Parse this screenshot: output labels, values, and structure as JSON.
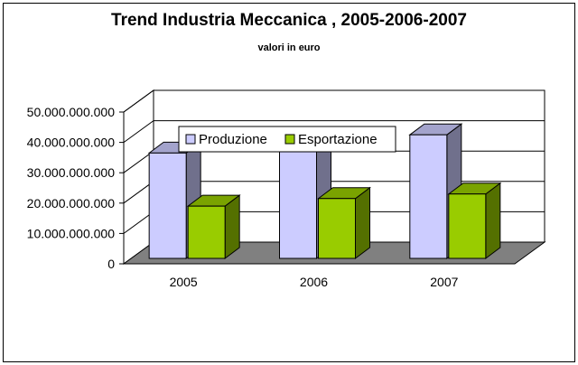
{
  "chart_data": {
    "type": "bar",
    "title": "Trend Industria Meccanica , 2005-2006-2007",
    "subtitle": "valori in euro",
    "categories": [
      "2005",
      "2006",
      "2007"
    ],
    "series": [
      {
        "name": "Produzione",
        "values": [
          36500000000,
          38000000000,
          42500000000
        ],
        "color": "#ccccff"
      },
      {
        "name": "Esportazione",
        "values": [
          19000000000,
          21500000000,
          23000000000
        ],
        "color": "#99cc00"
      }
    ],
    "ylim": [
      0,
      50000000000
    ],
    "yticks": [
      "0",
      "10.000.000.000",
      "20.000.000.000",
      "30.000.000.000",
      "40.000.000.000",
      "50.000.000.000"
    ],
    "grid": true,
    "legend_position": "top"
  }
}
